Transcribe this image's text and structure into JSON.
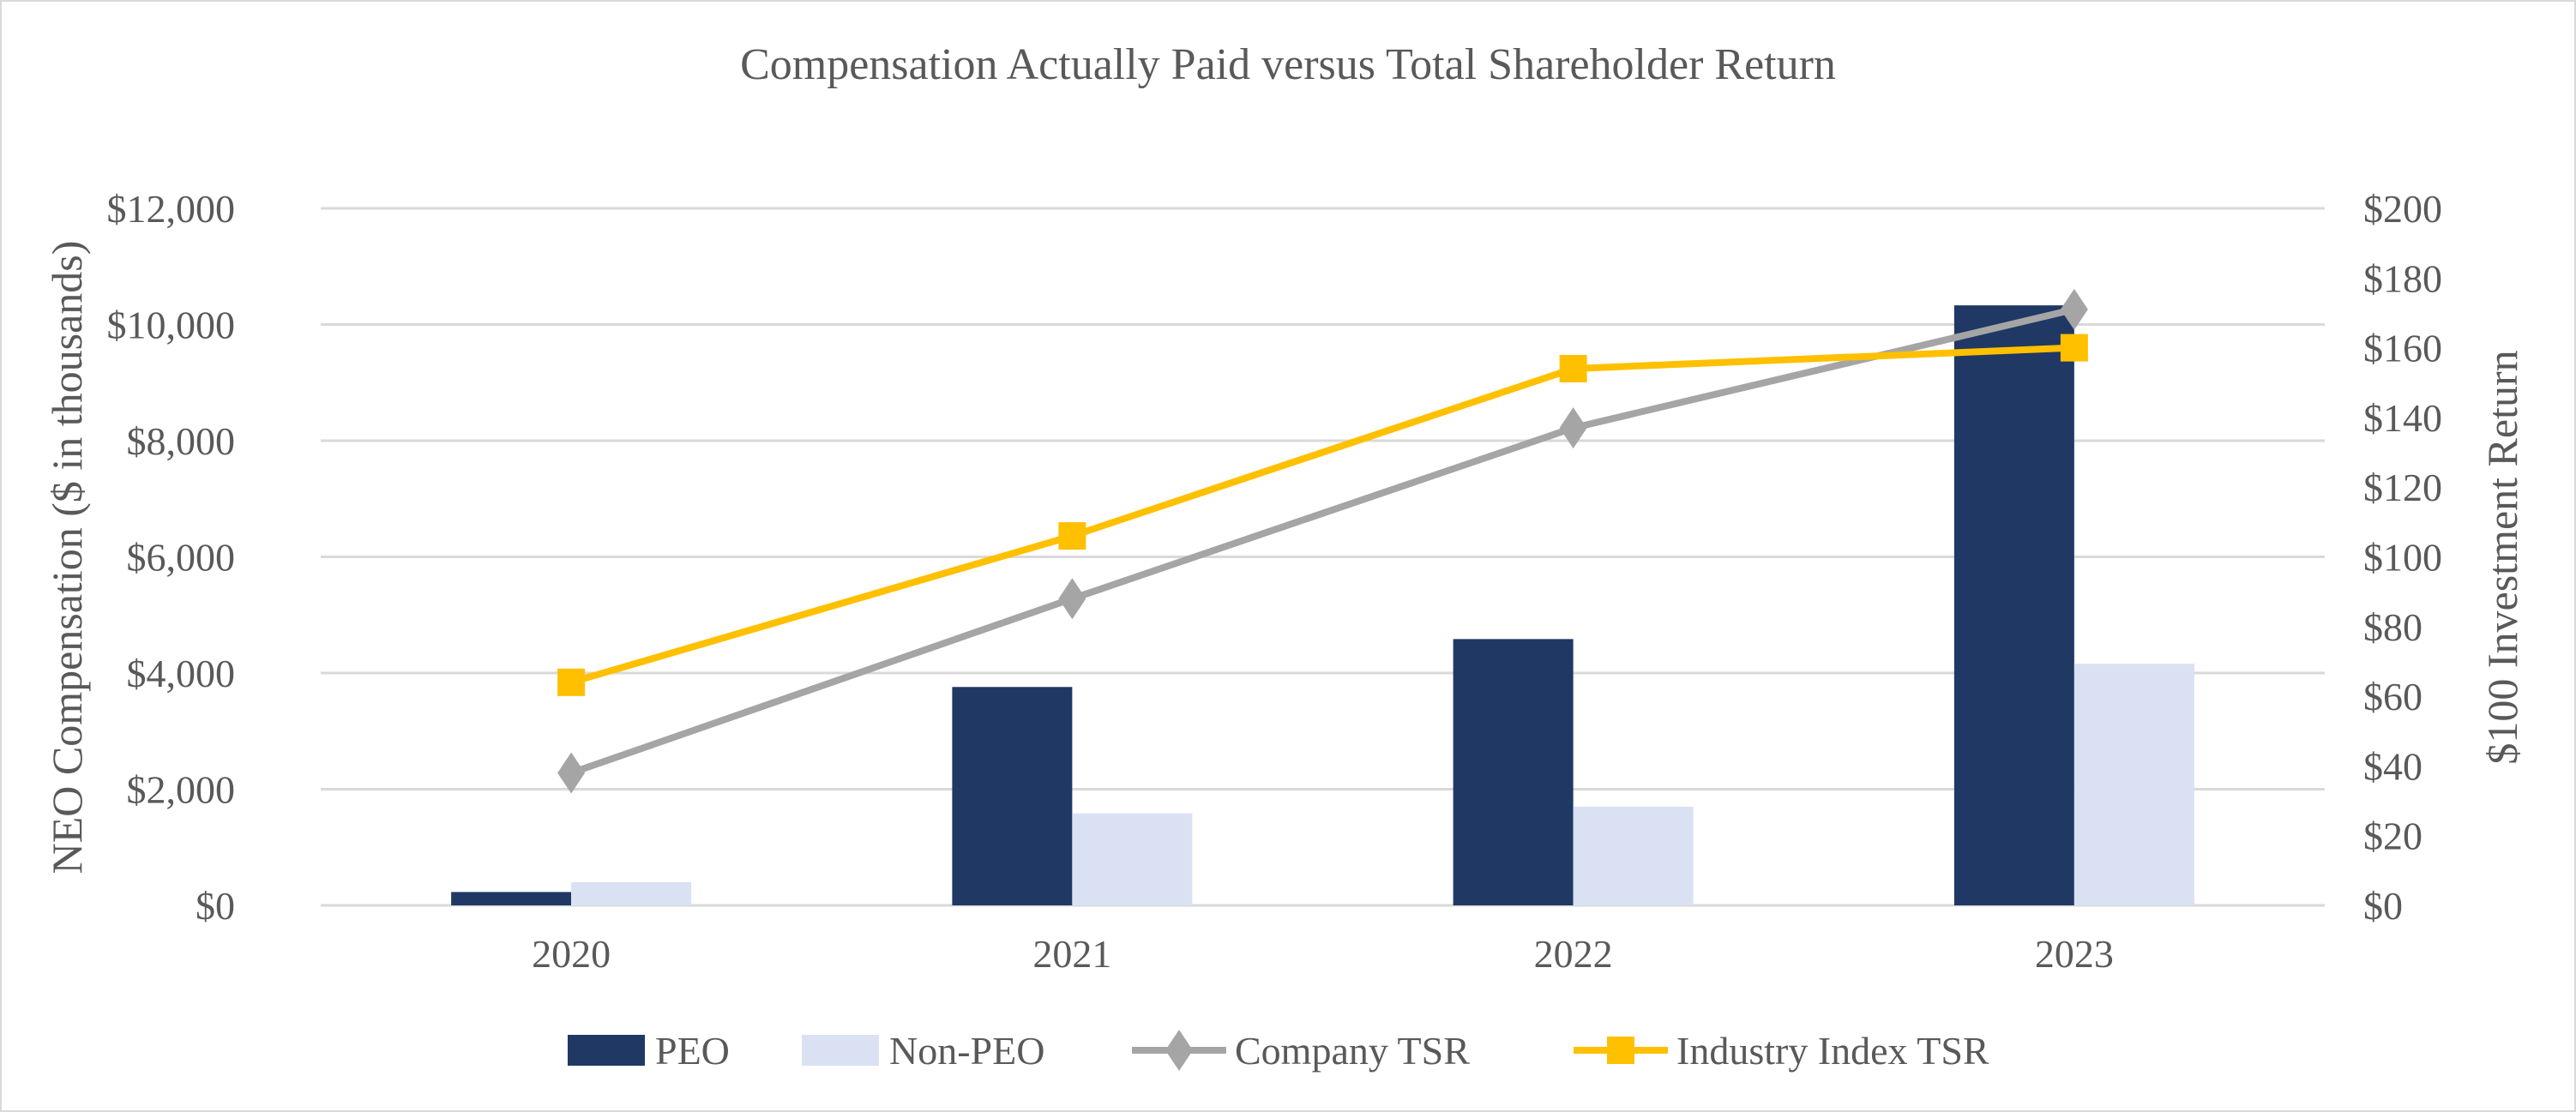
{
  "chart_data": {
    "type": "bar+line",
    "title": "Compensation Actually Paid versus Total Shareholder Return",
    "categories": [
      "2020",
      "2021",
      "2022",
      "2023"
    ],
    "ylabel_left": "NEO Compensation ($ in thousands)",
    "ylabel_right": "$100 Investment Return",
    "ylim_left": [
      0,
      12000
    ],
    "ylim_right": [
      0,
      200
    ],
    "yticks_left": [
      "$0",
      "$2,000",
      "$4,000",
      "$6,000",
      "$8,000",
      "$10,000",
      "$12,000"
    ],
    "yticks_right": [
      "$0",
      "$20",
      "$40",
      "$60",
      "$80",
      "$100",
      "$120",
      "$140",
      "$160",
      "$180",
      "$200"
    ],
    "grid": true,
    "legend_position": "bottom",
    "series": [
      {
        "name": "PEO",
        "type": "bar",
        "axis": "left",
        "color": "#203864",
        "values": [
          230,
          3760,
          4585,
          10330
        ]
      },
      {
        "name": "Non-PEO",
        "type": "bar",
        "axis": "left",
        "color": "#DAE1F3",
        "values": [
          400,
          1585,
          1700,
          4160
        ]
      },
      {
        "name": "Company TSR",
        "type": "line",
        "marker": "diamond",
        "axis": "right",
        "color": "#A5A5A5",
        "values": [
          38,
          88,
          137,
          171
        ]
      },
      {
        "name": "Industry Index TSR",
        "type": "line",
        "marker": "square",
        "axis": "right",
        "color": "#FFC000",
        "values": [
          64,
          106,
          154,
          160
        ]
      }
    ]
  }
}
